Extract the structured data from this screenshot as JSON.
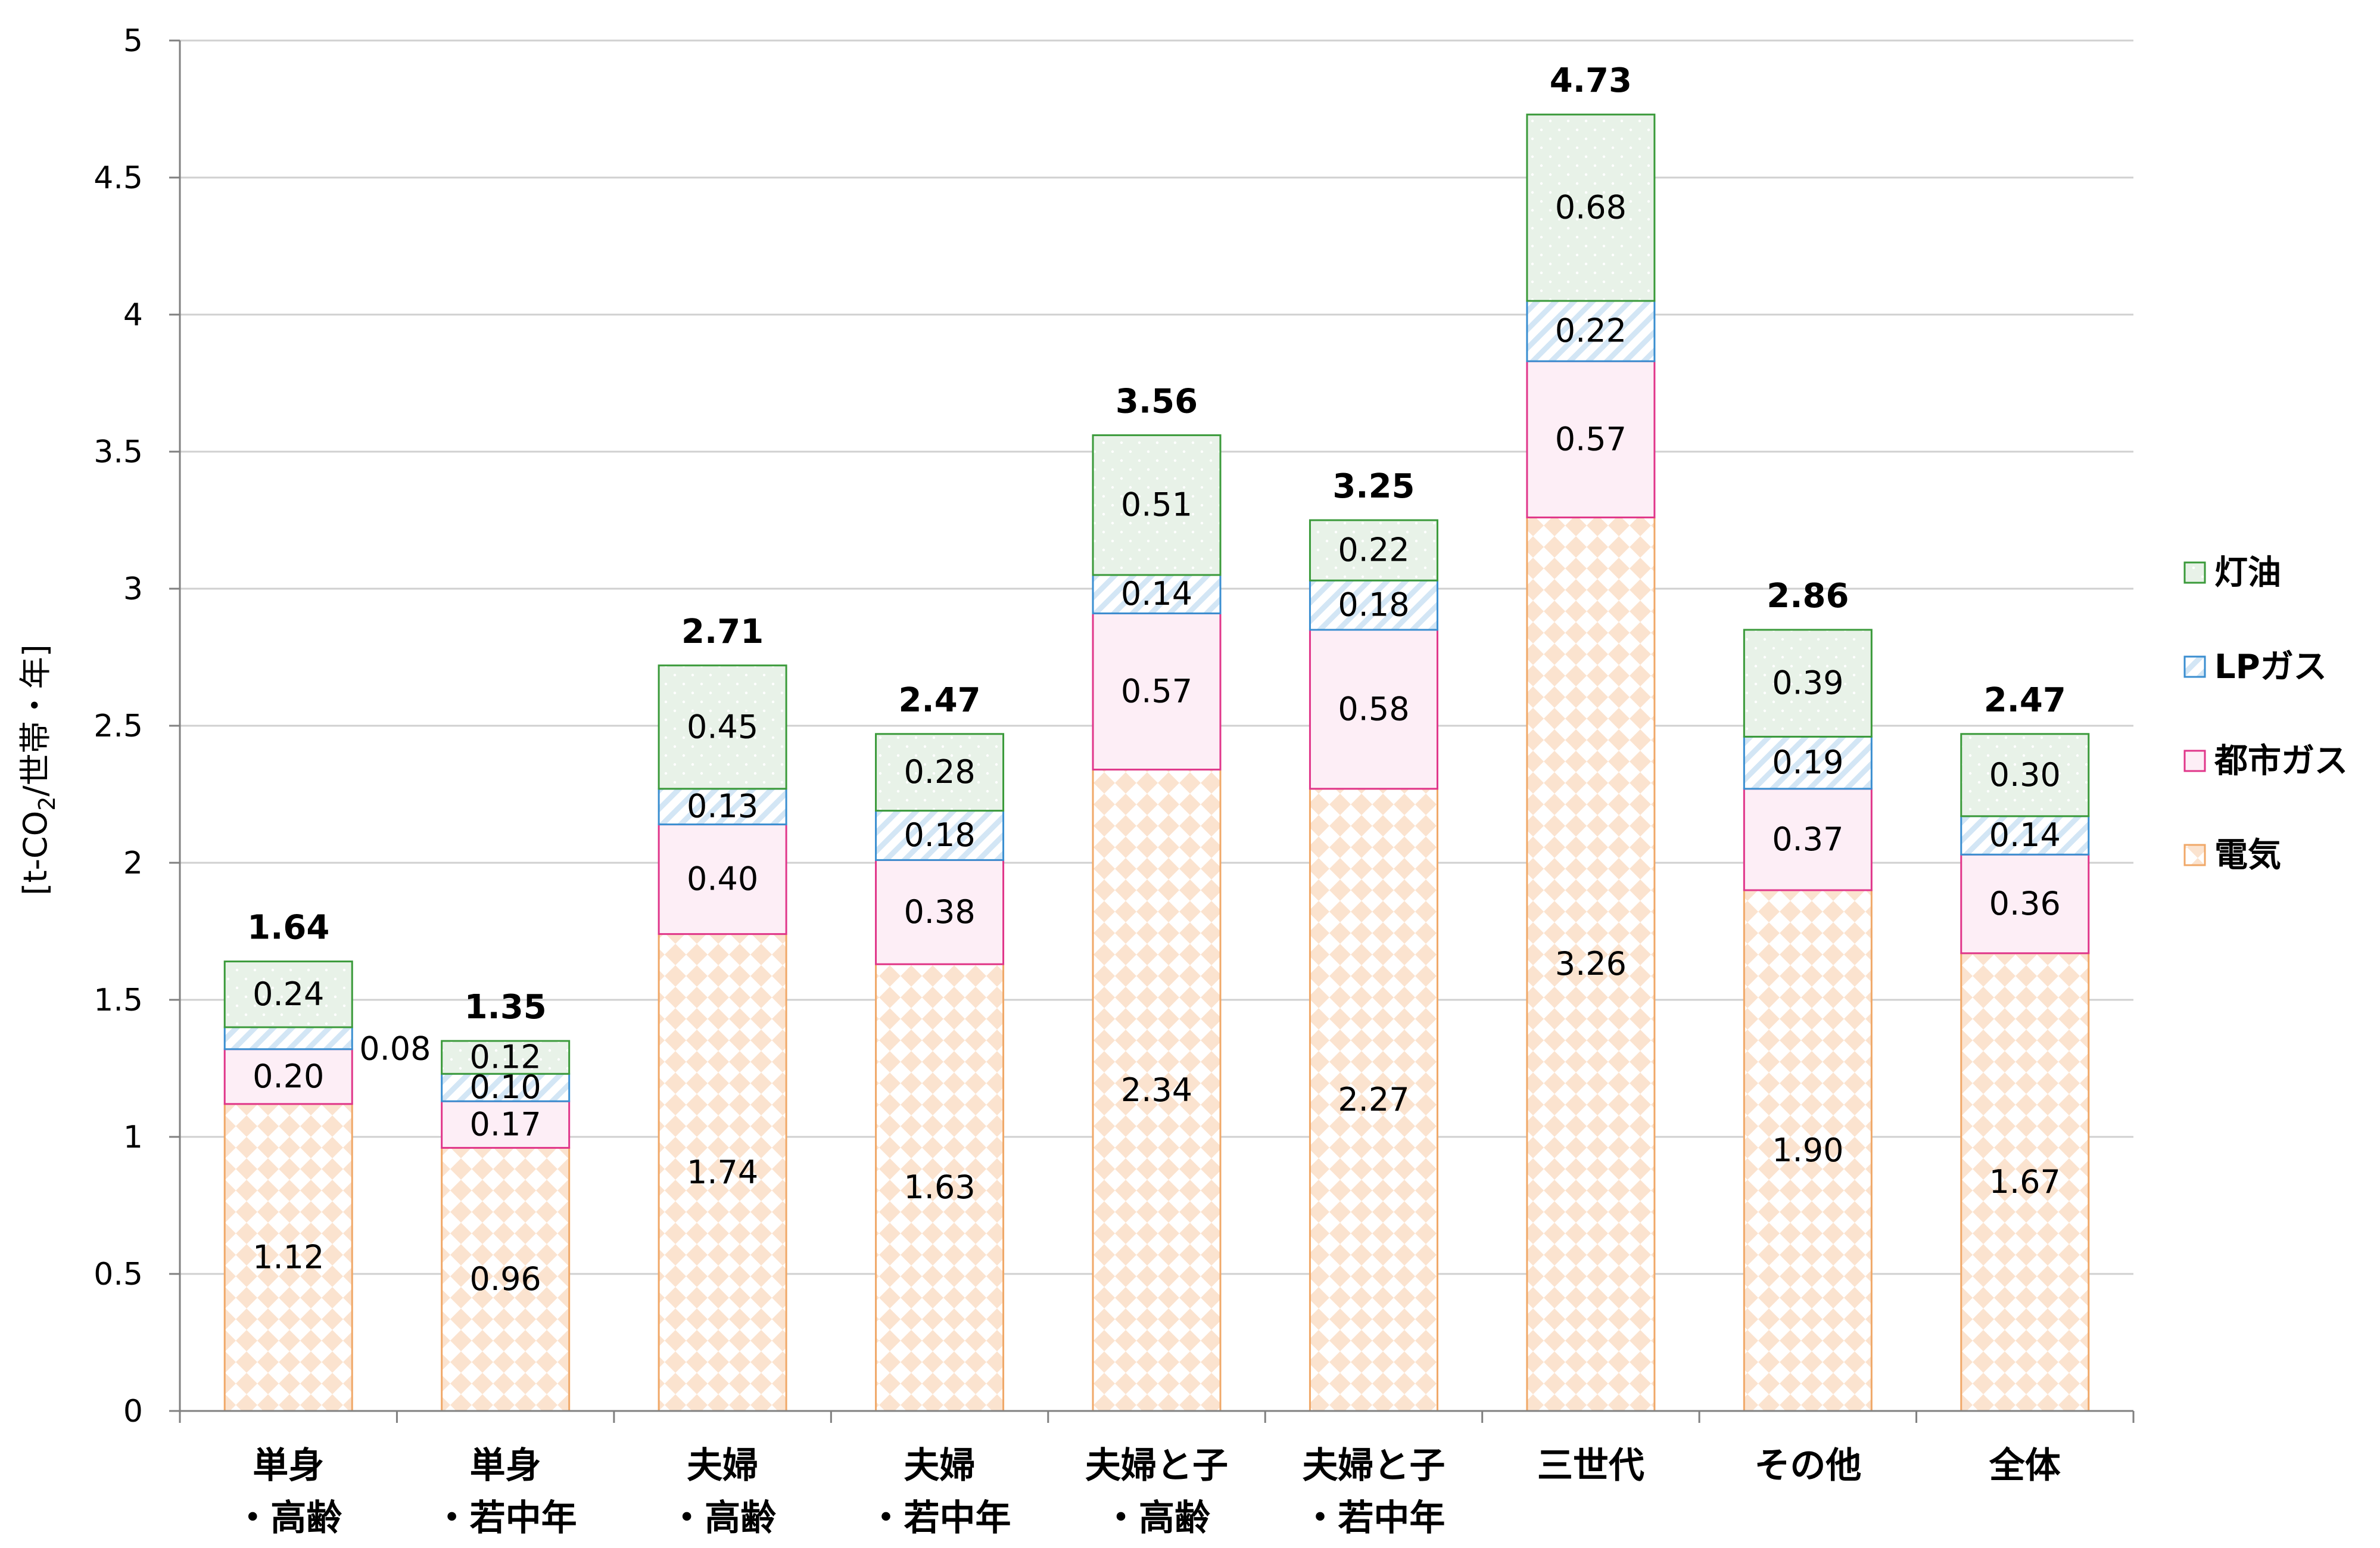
{
  "chart_data": {
    "type": "bar",
    "stacked": true,
    "ylabel_prefix": "[t-CO",
    "ylabel_sub": "2",
    "ylabel_suffix": "/世帯・年]",
    "ylim": [
      0,
      5
    ],
    "yticks": [
      "0",
      "0.5",
      "1",
      "1.5",
      "2",
      "2.5",
      "3",
      "3.5",
      "4",
      "4.5",
      "5"
    ],
    "grid": true,
    "legend_position": "right",
    "categories": [
      [
        "単身",
        "・高齢"
      ],
      [
        "単身",
        "・若中年"
      ],
      [
        "夫婦",
        "・高齢"
      ],
      [
        "夫婦",
        "・若中年"
      ],
      [
        "夫婦と子",
        "・高齢"
      ],
      [
        "夫婦と子",
        "・若中年"
      ],
      [
        "三世代"
      ],
      [
        "その他"
      ],
      [
        "全体"
      ]
    ],
    "series": [
      {
        "name": "電気",
        "color": "#f0a868",
        "fill": "#fdeee0",
        "pattern": "diamond",
        "values": [
          1.12,
          0.96,
          1.74,
          1.63,
          2.34,
          2.27,
          3.26,
          1.9,
          1.67
        ],
        "labels": [
          "1.12",
          "0.96",
          "1.74",
          "1.63",
          "2.34",
          "2.27",
          "3.26",
          "1.90",
          "1.67"
        ]
      },
      {
        "name": "都市ガス",
        "color": "#e0368a",
        "fill": "#fdeef6",
        "pattern": "none",
        "values": [
          0.2,
          0.17,
          0.4,
          0.38,
          0.57,
          0.58,
          0.57,
          0.37,
          0.36
        ],
        "labels": [
          "0.20",
          "0.17",
          "0.40",
          "0.38",
          "0.57",
          "0.58",
          "0.57",
          "0.37",
          "0.36"
        ]
      },
      {
        "name": "LPガス",
        "color": "#3a8ed0",
        "fill": "#ffffff",
        "pattern": "diagonal",
        "values": [
          0.08,
          0.1,
          0.13,
          0.18,
          0.14,
          0.18,
          0.22,
          0.19,
          0.14
        ],
        "labels": [
          "0.08",
          "0.10",
          "0.13",
          "0.18",
          "0.14",
          "0.18",
          "0.22",
          "0.19",
          "0.14"
        ]
      },
      {
        "name": "灯油",
        "color": "#3a9a3a",
        "fill": "#e6f1e6",
        "pattern": "dots",
        "values": [
          0.24,
          0.12,
          0.45,
          0.28,
          0.51,
          0.22,
          0.68,
          0.39,
          0.3
        ],
        "labels": [
          "0.24",
          "0.12",
          "0.45",
          "0.28",
          "0.51",
          "0.22",
          "0.68",
          "0.39",
          "0.30"
        ]
      }
    ],
    "totals": [
      "1.64",
      "1.35",
      "2.71",
      "2.47",
      "3.56",
      "3.25",
      "4.73",
      "2.86",
      "2.47"
    ],
    "legend_order": [
      "灯油",
      "LPガス",
      "都市ガス",
      "電気"
    ]
  }
}
